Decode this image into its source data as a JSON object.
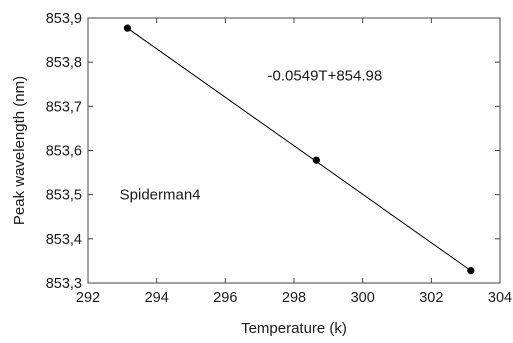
{
  "chart_data": {
    "type": "scatter",
    "title": "",
    "xlabel": "Temperature (k)",
    "ylabel": "Peak wavelength (nm)",
    "xlim": [
      292,
      304
    ],
    "ylim": [
      853.3,
      853.9
    ],
    "xticks": [
      "292",
      "294",
      "296",
      "298",
      "300",
      "302",
      "304"
    ],
    "yticks": [
      "853,3",
      "853,4",
      "853,5",
      "853,6",
      "853,7",
      "853,8",
      "853,9"
    ],
    "grid": false,
    "series": [
      {
        "x": [
          293.15,
          298.65,
          303.15
        ],
        "y": [
          853.877,
          853.578,
          853.328
        ],
        "marker": "circle",
        "color": "#000000"
      }
    ],
    "fit_line": {
      "x": [
        293.15,
        303.15
      ],
      "y": [
        853.877,
        853.328
      ],
      "color": "#000000"
    },
    "annotations": [
      {
        "text": "-0.0549T+854.98",
        "x": 298.9,
        "y": 853.77
      },
      {
        "text": "Spiderman4",
        "x": 294.1,
        "y": 853.5
      }
    ]
  }
}
